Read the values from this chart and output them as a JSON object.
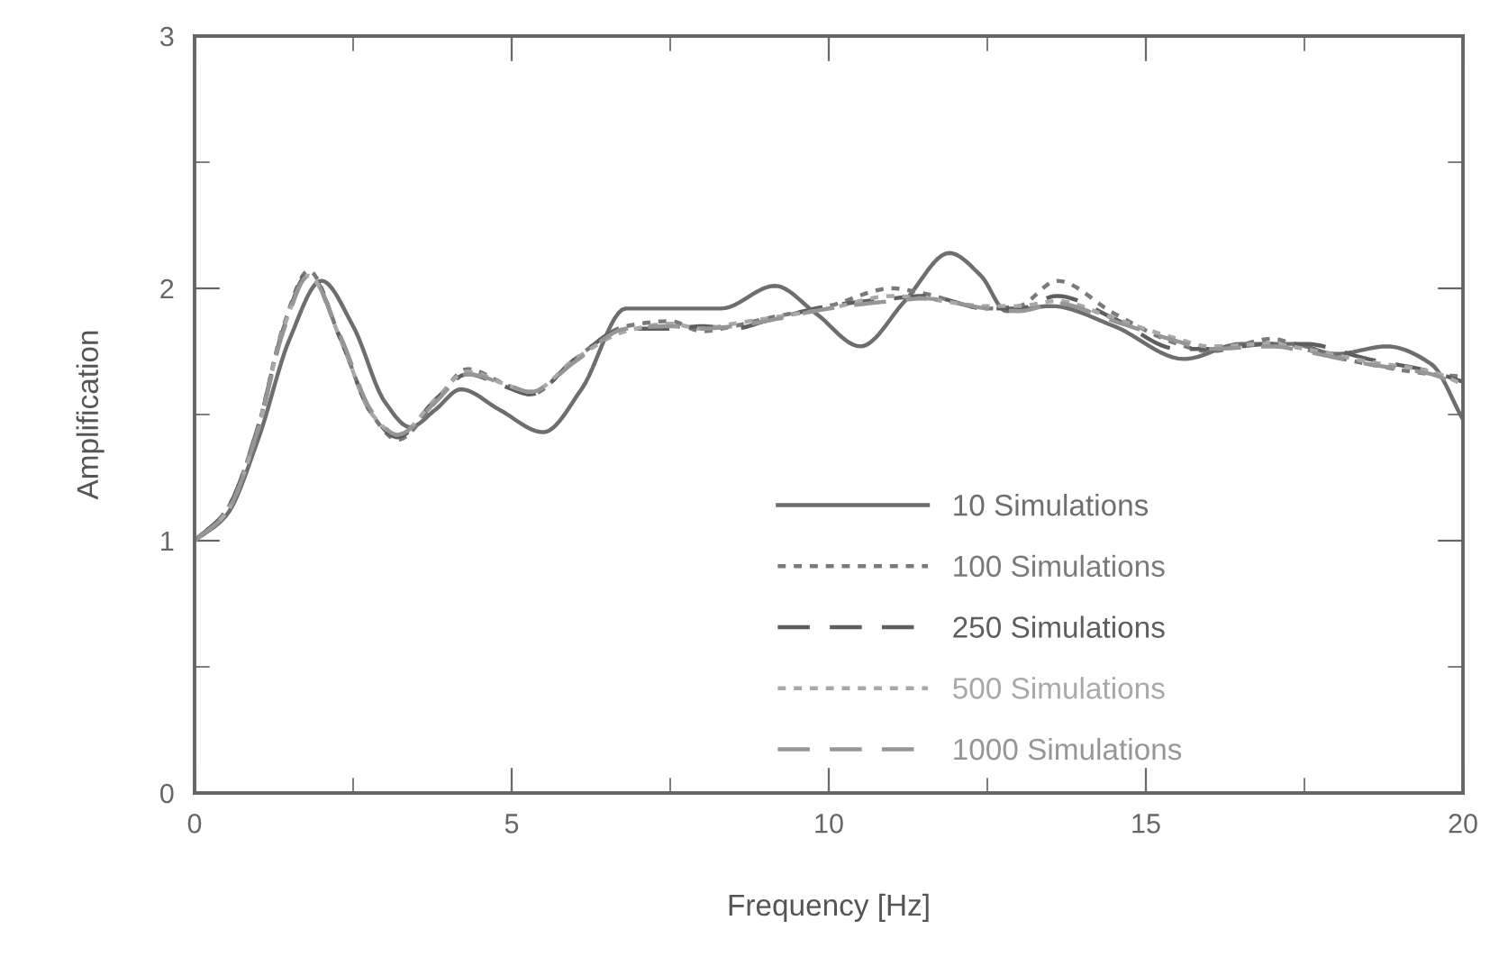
{
  "chart_data": {
    "type": "line",
    "xlabel": "Frequency [Hz]",
    "ylabel": "Amplification",
    "xlim": [
      0,
      20
    ],
    "ylim": [
      0,
      3
    ],
    "xticks": [
      0,
      5,
      10,
      15,
      20
    ],
    "yticks": [
      0,
      1,
      2,
      3
    ],
    "grid": false,
    "legend": "bottom right",
    "marker": "none",
    "series": [
      {
        "name": "10 Simulations",
        "color": "#6e6e6e",
        "line_style": "solid",
        "x": [
          0,
          0.5,
          1,
          1.5,
          2.0,
          2.5,
          3.0,
          3.4,
          3.8,
          4.2,
          4.8,
          5.5,
          6.1,
          6.8,
          7.5,
          8.3,
          9.15,
          9.8,
          10.5,
          11.2,
          11.9,
          12.4,
          12.8,
          13.5,
          14.5,
          15.6,
          16.5,
          17.3,
          18.0,
          18.8,
          19.5,
          20
        ],
        "values": [
          1.0,
          1.1,
          1.4,
          1.8,
          2.03,
          1.85,
          1.55,
          1.45,
          1.52,
          1.6,
          1.52,
          1.43,
          1.6,
          1.92,
          1.92,
          1.92,
          2.01,
          1.9,
          1.77,
          1.95,
          2.14,
          2.05,
          1.91,
          1.93,
          1.85,
          1.72,
          1.78,
          1.78,
          1.74,
          1.77,
          1.7,
          1.48
        ]
      },
      {
        "name": "100 Simulations",
        "color": "#7a7a7a",
        "line_style": "dotted",
        "x": [
          0,
          0.5,
          1,
          1.4,
          1.8,
          2.3,
          2.8,
          3.2,
          3.8,
          4.3,
          4.9,
          5.3,
          6.0,
          6.8,
          7.5,
          8.0,
          8.5,
          9.0,
          10.0,
          11.0,
          11.5,
          12.5,
          13.0,
          13.6,
          14.5,
          15.5,
          16.0,
          17.0,
          17.5,
          18.5,
          19.5,
          20
        ],
        "values": [
          1.0,
          1.12,
          1.45,
          1.85,
          2.07,
          1.8,
          1.5,
          1.4,
          1.55,
          1.68,
          1.62,
          1.58,
          1.72,
          1.85,
          1.87,
          1.83,
          1.85,
          1.88,
          1.93,
          2.0,
          1.98,
          1.92,
          1.93,
          2.03,
          1.9,
          1.78,
          1.75,
          1.8,
          1.76,
          1.7,
          1.66,
          1.65
        ]
      },
      {
        "name": "250 Simulations",
        "color": "#5e5e5e",
        "line_style": "dashed",
        "x": [
          0,
          0.5,
          1,
          1.4,
          1.8,
          2.3,
          2.8,
          3.2,
          3.8,
          4.3,
          4.9,
          5.3,
          6.0,
          6.8,
          7.5,
          8.0,
          8.5,
          9.0,
          10.0,
          11.0,
          11.5,
          12.5,
          13.0,
          13.6,
          14.5,
          15.5,
          16.0,
          17.0,
          17.5,
          18.5,
          19.5,
          20
        ],
        "values": [
          1.0,
          1.12,
          1.45,
          1.84,
          2.06,
          1.8,
          1.5,
          1.41,
          1.56,
          1.66,
          1.61,
          1.58,
          1.72,
          1.84,
          1.84,
          1.85,
          1.84,
          1.87,
          1.93,
          1.96,
          1.97,
          1.92,
          1.92,
          1.97,
          1.88,
          1.76,
          1.76,
          1.78,
          1.78,
          1.72,
          1.67,
          1.63
        ]
      },
      {
        "name": "500 Simulations",
        "color": "#a8a8a8",
        "line_style": "dotted",
        "x": [
          0,
          0.5,
          1,
          1.4,
          1.8,
          2.3,
          2.8,
          3.2,
          3.8,
          4.3,
          4.9,
          5.3,
          6.0,
          6.8,
          7.5,
          8.0,
          8.5,
          9.0,
          10.0,
          11.0,
          11.5,
          12.5,
          13.0,
          13.6,
          14.5,
          15.5,
          16.0,
          17.0,
          17.5,
          18.5,
          19.5,
          20
        ],
        "values": [
          1.0,
          1.11,
          1.44,
          1.84,
          2.05,
          1.8,
          1.5,
          1.42,
          1.56,
          1.67,
          1.62,
          1.59,
          1.72,
          1.83,
          1.86,
          1.84,
          1.86,
          1.88,
          1.92,
          1.97,
          1.96,
          1.93,
          1.93,
          1.95,
          1.88,
          1.8,
          1.77,
          1.78,
          1.76,
          1.71,
          1.67,
          1.62
        ]
      },
      {
        "name": "1000 Simulations",
        "color": "#969696",
        "line_style": "dashed",
        "x": [
          0,
          0.5,
          1,
          1.4,
          1.8,
          2.3,
          2.8,
          3.2,
          3.8,
          4.3,
          4.9,
          5.3,
          6.0,
          6.8,
          7.5,
          8.0,
          8.5,
          9.0,
          10.0,
          11.0,
          11.5,
          12.5,
          13.0,
          13.6,
          14.5,
          15.5,
          16.0,
          17.0,
          17.5,
          18.5,
          19.5,
          20
        ],
        "values": [
          1.0,
          1.11,
          1.44,
          1.83,
          2.05,
          1.81,
          1.51,
          1.42,
          1.55,
          1.66,
          1.62,
          1.59,
          1.71,
          1.84,
          1.85,
          1.84,
          1.85,
          1.87,
          1.92,
          1.95,
          1.96,
          1.92,
          1.91,
          1.94,
          1.87,
          1.79,
          1.76,
          1.77,
          1.75,
          1.7,
          1.66,
          1.61
        ]
      }
    ]
  }
}
